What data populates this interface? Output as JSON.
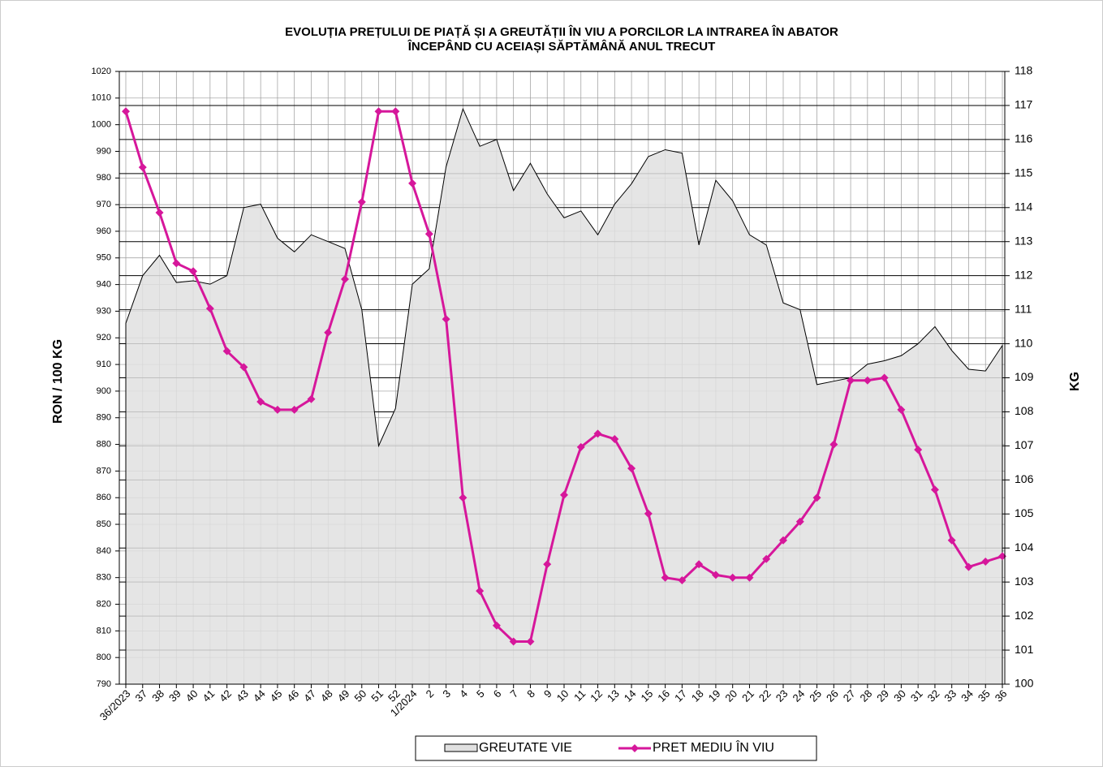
{
  "chart_data": {
    "type": "area-line",
    "title": "EVOLUȚIA PREȚULUI DE PIAȚĂ ȘI A GREUTĂȚII  ÎN VIU A PORCILOR LA INTRAREA  ÎN ABATOR",
    "subtitle": "ÎNCEPÂND  CU ACEIAȘI SĂPTĂMÂNĂ ANUL TRECUT",
    "y_label": "RON / 100 KG",
    "y2_label": "KG",
    "categories": [
      "36/2023",
      "37",
      "38",
      "39",
      "40",
      "41",
      "42",
      "43",
      "44",
      "45",
      "46",
      "47",
      "48",
      "49",
      "50",
      "51",
      "52",
      "1/2024",
      "2",
      "3",
      "4",
      "5",
      "6",
      "7",
      "8",
      "9",
      "10",
      "11",
      "12",
      "13",
      "14",
      "15",
      "16",
      "17",
      "18",
      "19",
      "20",
      "21",
      "22",
      "23",
      "24",
      "25",
      "26",
      "27",
      "28",
      "29",
      "30",
      "31",
      "32",
      "33",
      "34",
      "35",
      "36"
    ],
    "series": [
      {
        "name": "GREUTATE VIE",
        "kind": "area",
        "axis": "y2",
        "color": "#e0e0e0",
        "values": [
          110.6,
          112.0,
          112.6,
          111.8,
          111.85,
          111.75,
          112.0,
          114.0,
          114.1,
          113.1,
          112.7,
          113.2,
          113.0,
          112.8,
          111.0,
          107.0,
          108.1,
          111.75,
          112.2,
          115.2,
          116.9,
          115.8,
          116.0,
          114.5,
          115.3,
          114.4,
          113.7,
          113.9,
          113.2,
          114.1,
          114.7,
          115.5,
          115.7,
          115.6,
          112.9,
          114.8,
          114.2,
          113.2,
          112.9,
          111.2,
          111.0,
          108.8,
          108.9,
          109.0,
          109.4,
          109.5,
          109.65,
          110.0,
          110.5,
          109.8,
          109.25,
          109.2,
          109.95
        ]
      },
      {
        "name": "PRET MEDIU ÎN VIU",
        "kind": "line",
        "axis": "y",
        "color": "#d6179b",
        "values": [
          1005,
          984,
          967,
          948,
          945,
          931,
          915,
          909,
          896,
          893,
          893,
          897,
          922,
          942,
          971,
          1005,
          1005,
          978,
          959,
          927,
          860,
          825,
          812,
          806,
          806,
          835,
          861,
          879,
          884,
          882,
          871,
          854,
          830,
          829,
          835,
          831,
          830,
          830,
          837,
          844,
          851,
          860,
          880,
          904,
          904,
          905,
          893,
          878,
          863,
          844,
          834,
          836,
          838
        ]
      }
    ],
    "ylim": [
      790,
      1020
    ],
    "yticks": [
      790,
      800,
      810,
      820,
      830,
      840,
      850,
      860,
      870,
      880,
      890,
      900,
      910,
      920,
      930,
      940,
      950,
      960,
      970,
      980,
      990,
      1000,
      1010,
      1020
    ],
    "y2lim": [
      100,
      118
    ],
    "y2ticks": [
      100,
      101,
      102,
      103,
      104,
      105,
      106,
      107,
      108,
      109,
      110,
      111,
      112,
      113,
      114,
      115,
      116,
      117,
      118
    ],
    "grid": true
  }
}
